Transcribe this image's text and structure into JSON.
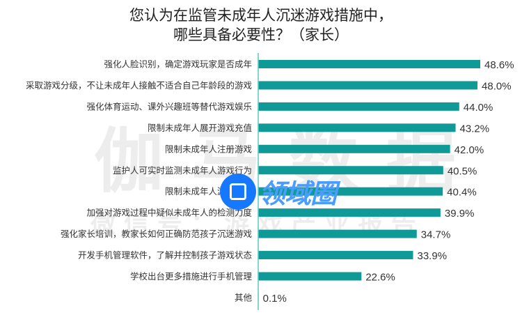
{
  "chart_data": {
    "type": "bar",
    "orientation": "horizontal",
    "title": [
      "您认为在监管未成年人沉迷游戏措施中，",
      "哪些具备必要性？（家长）"
    ],
    "categories": [
      "强化人脸识别，确定游戏玩家是否成年",
      "采取游戏分级，不让未成年人接触不适合自己年龄段的游戏",
      "强化体育运动、课外兴趣班等替代游戏娱乐",
      "限制未成年人展开游戏充值",
      "限制未成年人注册游戏",
      "监护人可实时监测未成年人游戏行为",
      "限制未成年人游戏时长",
      "加强对游戏过程中疑似未成年人的检测力度",
      "强化家长培训，教家长如何正确防范孩子沉迷游戏",
      "开发手机管理软件，了解并控制孩子游戏状态",
      "学校出台更多措施进行手机管理",
      "其他"
    ],
    "values": [
      48.6,
      48.0,
      44.0,
      43.2,
      42.0,
      40.5,
      40.4,
      39.9,
      34.7,
      33.9,
      22.6,
      0.1
    ],
    "value_labels": [
      "48.6%",
      "48.0%",
      "44.0%",
      "43.2%",
      "42.0%",
      "40.5%",
      "40.4%",
      "39.9%",
      "34.7%",
      "33.9%",
      "22.6%",
      "0.1%"
    ],
    "unit": "%",
    "xlim": [
      0,
      50
    ],
    "grid": false,
    "bar_color": "#0f9a98",
    "axis_color": "#5fc7c6"
  },
  "watermarks": {
    "main": "伽马数据",
    "sub": "微信号：游戏产业报告",
    "logo": "领域圈"
  }
}
